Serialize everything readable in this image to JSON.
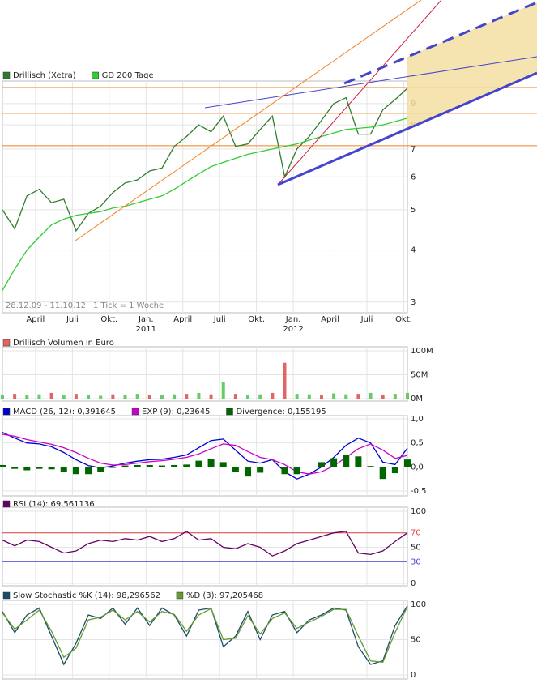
{
  "chart_data": [
    {
      "type": "line",
      "log_scale": true,
      "grid": true,
      "x": [
        0.3,
        1.3,
        2.3,
        3.3,
        4.3,
        5.3,
        6.3,
        7.3,
        8.3,
        9.3,
        10.3,
        11.3,
        12.3,
        13.3,
        14.3,
        15.3,
        16.3,
        17.3,
        18.3,
        19.3,
        20.3,
        21.3,
        22.3,
        23.3,
        24.3,
        25.3,
        26.3,
        27.3,
        28.3,
        29.3,
        30.3,
        31.3,
        32.3,
        33.3
      ],
      "xlim": [
        0.3,
        33.3
      ],
      "xticks": [
        {
          "value": 3,
          "label": "April"
        },
        {
          "value": 6,
          "label": "Juli"
        },
        {
          "value": 9,
          "label": "Okt."
        },
        {
          "value": 12,
          "label": "Jan."
        },
        {
          "value": 15,
          "label": "April"
        },
        {
          "value": 18,
          "label": "Juli"
        },
        {
          "value": 21,
          "label": "Okt."
        },
        {
          "value": 24,
          "label": "Jan."
        },
        {
          "value": 27,
          "label": "April"
        },
        {
          "value": 30,
          "label": "Juli"
        },
        {
          "value": 33,
          "label": "Okt."
        }
      ],
      "year_labels": [
        {
          "value": 12,
          "label": "2011"
        },
        {
          "value": 24,
          "label": "2012"
        }
      ],
      "date_range": "28.12.09 - 11.10.12",
      "tick_note": "1 Tick = 1 Woche",
      "ylim": [
        2.84,
        10.2
      ],
      "yticks": [
        3,
        4,
        5,
        6,
        7,
        8,
        9
      ],
      "hlines": [
        {
          "value": 9.84,
          "color": "#f08020"
        },
        {
          "value": 8.53,
          "color": "#f08020"
        },
        {
          "value": 7.13,
          "color": "#f08020"
        }
      ],
      "series": [
        {
          "name": "Drillisch (Xetra)",
          "color": "#2e7d2e",
          "values": [
            5.0,
            4.5,
            5.4,
            5.6,
            5.2,
            5.3,
            4.45,
            4.9,
            5.1,
            5.5,
            5.8,
            5.9,
            6.2,
            6.3,
            7.1,
            7.5,
            8.0,
            7.7,
            8.4,
            7.1,
            7.2,
            7.8,
            8.4,
            6.0,
            7.0,
            7.5,
            8.2,
            9.0,
            9.3,
            7.6,
            7.6,
            8.7,
            9.2,
            9.8
          ]
        },
        {
          "name": "GD 200 Tage",
          "color": "#33cc33",
          "values": [
            3.2,
            3.6,
            4.0,
            4.3,
            4.6,
            4.75,
            4.85,
            4.9,
            4.95,
            5.05,
            5.1,
            5.2,
            5.3,
            5.4,
            5.6,
            5.85,
            6.1,
            6.35,
            6.5,
            6.65,
            6.8,
            6.9,
            7.0,
            7.1,
            7.2,
            7.35,
            7.5,
            7.65,
            7.8,
            7.85,
            7.9,
            8.0,
            8.15,
            8.3
          ]
        }
      ]
    },
    {
      "type": "bar",
      "title": "Drillisch Volumen in Euro",
      "color": "#e06666",
      "grid": true,
      "x": [
        0.3,
        1.3,
        2.3,
        3.3,
        4.3,
        5.3,
        6.3,
        7.3,
        8.3,
        9.3,
        10.3,
        11.3,
        12.3,
        13.3,
        14.3,
        15.3,
        16.3,
        17.3,
        18.3,
        19.3,
        20.3,
        21.3,
        22.3,
        23.3,
        24.3,
        25.3,
        26.3,
        27.3,
        28.3,
        29.3,
        30.3,
        31.3,
        32.3,
        33.3
      ],
      "xlim": [
        0.3,
        33.3
      ],
      "values": [
        8,
        10,
        7,
        9,
        12,
        8,
        10,
        7,
        6,
        9,
        8,
        10,
        7,
        8,
        9,
        10,
        12,
        9,
        35,
        10,
        8,
        9,
        12,
        75,
        10,
        9,
        8,
        11,
        9,
        10,
        12,
        8,
        10,
        12
      ],
      "colors": [
        "#66cc66",
        "#e06666",
        "#66cc66",
        "#66cc66",
        "#e06666",
        "#66cc66",
        "#e06666",
        "#66cc66",
        "#66cc66",
        "#e06666",
        "#66cc66",
        "#66cc66",
        "#e06666",
        "#66cc66",
        "#66cc66",
        "#e06666",
        "#66cc66",
        "#e06666",
        "#66cc66",
        "#e06666",
        "#66cc66",
        "#66cc66",
        "#e06666",
        "#e06666",
        "#66cc66",
        "#66cc66",
        "#e06666",
        "#66cc66",
        "#66cc66",
        "#e06666",
        "#66cc66",
        "#e06666",
        "#66cc66",
        "#66cc66"
      ],
      "ylim": [
        0,
        100
      ],
      "yticks": [
        {
          "value": 0,
          "label": "0M"
        },
        {
          "value": 50,
          "label": "50M"
        },
        {
          "value": 100,
          "label": "100M"
        }
      ]
    },
    {
      "type": "line",
      "grid": true,
      "x": [
        0.3,
        1.3,
        2.3,
        3.3,
        4.3,
        5.3,
        6.3,
        7.3,
        8.3,
        9.3,
        10.3,
        11.3,
        12.3,
        13.3,
        14.3,
        15.3,
        16.3,
        17.3,
        18.3,
        19.3,
        20.3,
        21.3,
        22.3,
        23.3,
        24.3,
        25.3,
        26.3,
        27.3,
        28.3,
        29.3,
        30.3,
        31.3,
        32.3,
        33.3
      ],
      "xlim": [
        0.3,
        33.3
      ],
      "ylim": [
        -0.5,
        1.0
      ],
      "yticks": [
        {
          "value": 1.0,
          "label": "1,0"
        },
        {
          "value": 0.5,
          "label": "0,5"
        },
        {
          "value": 0,
          "label": "0,0"
        },
        {
          "value": -0.5,
          "label": "-0,5"
        }
      ],
      "series": [
        {
          "name": "MACD (26, 12): 0,391645",
          "color": "#0000cc",
          "values": [
            0.72,
            0.6,
            0.5,
            0.48,
            0.42,
            0.3,
            0.15,
            0.03,
            -0.02,
            0.02,
            0.08,
            0.12,
            0.15,
            0.16,
            0.2,
            0.25,
            0.4,
            0.55,
            0.58,
            0.35,
            0.12,
            0.08,
            0.15,
            -0.1,
            -0.25,
            -0.15,
            0.0,
            0.2,
            0.45,
            0.6,
            0.5,
            0.1,
            0.05,
            0.39
          ]
        },
        {
          "name": "EXP (9): 0,23645",
          "color": "#cc00cc",
          "values": [
            0.68,
            0.64,
            0.57,
            0.52,
            0.47,
            0.4,
            0.3,
            0.18,
            0.08,
            0.04,
            0.05,
            0.08,
            0.11,
            0.13,
            0.16,
            0.2,
            0.27,
            0.38,
            0.48,
            0.45,
            0.32,
            0.2,
            0.15,
            0.05,
            -0.1,
            -0.15,
            -0.1,
            0.02,
            0.2,
            0.38,
            0.48,
            0.35,
            0.18,
            0.24
          ]
        },
        {
          "name": "Divergence: 0,155195",
          "color": "#006600",
          "style": "bar",
          "values": [
            0.04,
            -0.04,
            -0.07,
            -0.04,
            -0.05,
            -0.1,
            -0.15,
            -0.15,
            -0.1,
            -0.02,
            0.03,
            0.04,
            0.04,
            0.03,
            0.04,
            0.05,
            0.13,
            0.17,
            0.1,
            -0.1,
            -0.2,
            -0.12,
            0,
            -0.15,
            -0.15,
            0,
            0.1,
            0.18,
            0.25,
            0.22,
            0.02,
            -0.25,
            -0.13,
            0.155
          ]
        }
      ]
    },
    {
      "type": "line",
      "grid": true,
      "x": [
        0.3,
        1.3,
        2.3,
        3.3,
        4.3,
        5.3,
        6.3,
        7.3,
        8.3,
        9.3,
        10.3,
        11.3,
        12.3,
        13.3,
        14.3,
        15.3,
        16.3,
        17.3,
        18.3,
        19.3,
        20.3,
        21.3,
        22.3,
        23.3,
        24.3,
        25.3,
        26.3,
        27.3,
        28.3,
        29.3,
        30.3,
        31.3,
        32.3,
        33.3
      ],
      "xlim": [
        0.3,
        33.3
      ],
      "ylim": [
        0,
        100
      ],
      "yticks": [
        100,
        70,
        50,
        30,
        0
      ],
      "hlines": [
        {
          "value": 70,
          "color": "#dd4444"
        },
        {
          "value": 30,
          "color": "#4444dd"
        }
      ],
      "series": [
        {
          "name": "RSI (14): 69,561136",
          "color": "#660066",
          "values": [
            60,
            52,
            60,
            58,
            50,
            42,
            45,
            55,
            60,
            58,
            62,
            60,
            65,
            58,
            62,
            72,
            60,
            62,
            50,
            48,
            55,
            50,
            38,
            45,
            55,
            60,
            65,
            70,
            72,
            42,
            40,
            45,
            58,
            70
          ]
        }
      ]
    },
    {
      "type": "line",
      "grid": true,
      "x": [
        0.3,
        1.3,
        2.3,
        3.3,
        4.3,
        5.3,
        6.3,
        7.3,
        8.3,
        9.3,
        10.3,
        11.3,
        12.3,
        13.3,
        14.3,
        15.3,
        16.3,
        17.3,
        18.3,
        19.3,
        20.3,
        21.3,
        22.3,
        23.3,
        24.3,
        25.3,
        26.3,
        27.3,
        28.3,
        29.3,
        30.3,
        31.3,
        32.3,
        33.3
      ],
      "xlim": [
        0.3,
        33.3
      ],
      "ylim": [
        0,
        100
      ],
      "yticks": [
        100,
        50,
        0
      ],
      "series": [
        {
          "name": "Slow Stochastic %K (14): 98,296562",
          "color": "#1a4d66",
          "values": [
            90,
            60,
            85,
            95,
            55,
            15,
            45,
            85,
            80,
            95,
            72,
            95,
            70,
            95,
            85,
            55,
            92,
            95,
            40,
            55,
            90,
            50,
            85,
            90,
            60,
            78,
            85,
            95,
            92,
            40,
            15,
            20,
            70,
            98
          ]
        },
        {
          "name": "%D (3): 97,205468",
          "color": "#669933",
          "values": [
            88,
            65,
            78,
            92,
            62,
            25,
            38,
            78,
            82,
            92,
            78,
            90,
            75,
            90,
            86,
            62,
            85,
            94,
            50,
            52,
            84,
            58,
            80,
            88,
            66,
            75,
            83,
            93,
            93,
            55,
            20,
            18,
            60,
            97
          ]
        }
      ]
    }
  ]
}
